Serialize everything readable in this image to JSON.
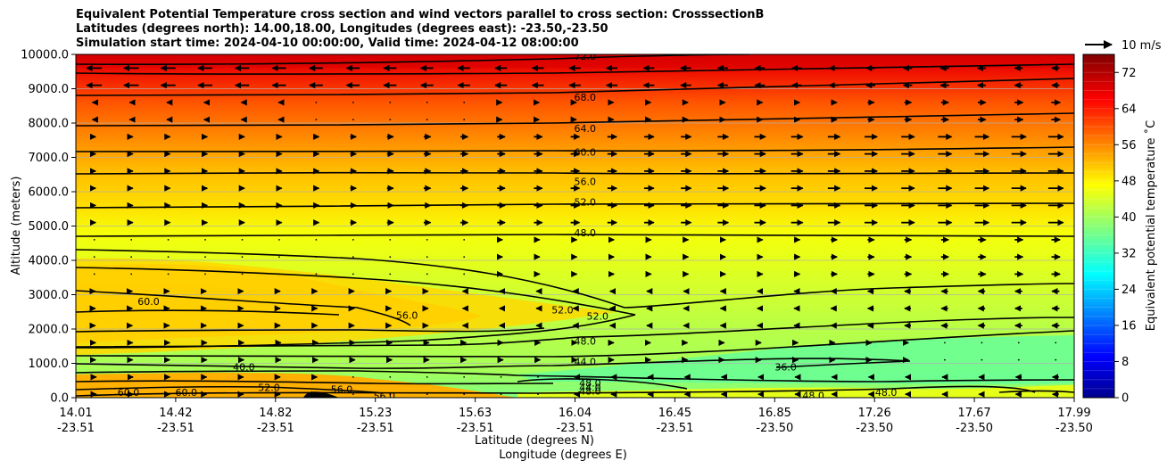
{
  "chart_data": {
    "type": "heatmap",
    "title": [
      "Equivalent Potential Temperature cross section and wind vectors parallel to cross section: CrosssectionB",
      "Latitudes (degrees north): 14.00,18.00, Longitudes (degrees east): -23.50,-23.50",
      "Simulation start time: 2024-04-10 00:00:00, Valid time: 2024-04-12 08:00:00"
    ],
    "xlabel": "Latitude (degrees N)",
    "xlabel2": "Longitude (degrees E)",
    "ylabel": "Altitude (meters)",
    "ylim": [
      0,
      10000
    ],
    "y_ticks": [
      "0.0",
      "1000.0",
      "2000.0",
      "3000.0",
      "4000.0",
      "5000.0",
      "6000.0",
      "7000.0",
      "8000.0",
      "9000.0",
      "10000.0"
    ],
    "x_ticks": [
      {
        "lat": "14.01",
        "lon": "-23.51"
      },
      {
        "lat": "14.42",
        "lon": "-23.51"
      },
      {
        "lat": "14.82",
        "lon": "-23.51"
      },
      {
        "lat": "15.23",
        "lon": "-23.51"
      },
      {
        "lat": "15.63",
        "lon": "-23.51"
      },
      {
        "lat": "16.04",
        "lon": "-23.51"
      },
      {
        "lat": "16.45",
        "lon": "-23.51"
      },
      {
        "lat": "16.85",
        "lon": "-23.50"
      },
      {
        "lat": "17.26",
        "lon": "-23.50"
      },
      {
        "lat": "17.67",
        "lon": "-23.50"
      },
      {
        "lat": "17.99",
        "lon": "-23.50"
      }
    ],
    "colorbar": {
      "label": "Equivalent potential temperature ˚C",
      "ticks": [
        "0",
        "8",
        "16",
        "24",
        "32",
        "40",
        "48",
        "56",
        "64",
        "72"
      ],
      "range": [
        0,
        76
      ]
    },
    "quiver_key": "10 m/s",
    "contour_labels": [
      {
        "text": "72.0",
        "lat": 16.04,
        "alt": 9950
      },
      {
        "text": "68.0",
        "lat": 16.04,
        "alt": 8750
      },
      {
        "text": "64.0",
        "lat": 16.04,
        "alt": 7850
      },
      {
        "text": "60.0",
        "lat": 16.04,
        "alt": 7150
      },
      {
        "text": "56.0",
        "lat": 16.04,
        "alt": 6300
      },
      {
        "text": "52.0",
        "lat": 16.04,
        "alt": 5700
      },
      {
        "text": "48.0",
        "lat": 16.04,
        "alt": 4800
      },
      {
        "text": "60.0",
        "lat": 14.3,
        "alt": 2800
      },
      {
        "text": "56.0",
        "lat": 15.33,
        "alt": 2400
      },
      {
        "text": "52.0",
        "lat": 15.95,
        "alt": 2560
      },
      {
        "text": "52.0",
        "lat": 16.09,
        "alt": 2380
      },
      {
        "text": "48.0",
        "lat": 16.04,
        "alt": 1650
      },
      {
        "text": "44.0",
        "lat": 16.04,
        "alt": 1050
      },
      {
        "text": "40.0",
        "lat": 14.68,
        "alt": 900
      },
      {
        "text": "52.0",
        "lat": 14.78,
        "alt": 300
      },
      {
        "text": "36.0",
        "lat": 16.84,
        "alt": 900
      },
      {
        "text": "48.0",
        "lat": 16.06,
        "alt": 430
      },
      {
        "text": "44.0",
        "lat": 16.06,
        "alt": 300
      },
      {
        "text": "48.0",
        "lat": 16.06,
        "alt": 200
      },
      {
        "text": "48.0",
        "lat": 16.95,
        "alt": 60
      },
      {
        "text": "48.0",
        "lat": 17.24,
        "alt": 150
      },
      {
        "text": "60.0",
        "lat": 14.22,
        "alt": 150
      },
      {
        "text": "60.0",
        "lat": 14.45,
        "alt": 150
      },
      {
        "text": "56.0",
        "lat": 15.07,
        "alt": 250
      },
      {
        "text": "56.0",
        "lat": 15.24,
        "alt": 50
      }
    ]
  }
}
